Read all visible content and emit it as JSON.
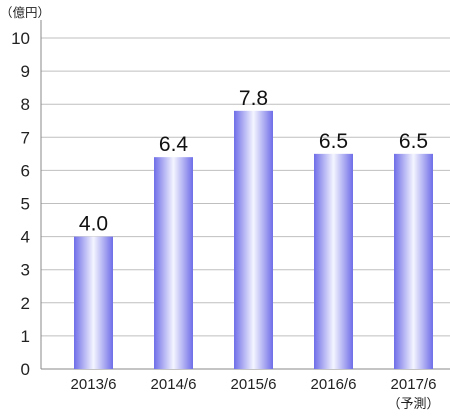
{
  "chart_data": {
    "type": "bar",
    "unit_label": "（億円）",
    "categories": [
      "2013/6",
      "2014/6",
      "2015/6",
      "2016/6",
      "2017/6"
    ],
    "category_notes": [
      "",
      "",
      "",
      "",
      "（予測）"
    ],
    "values": [
      4.0,
      6.4,
      7.8,
      6.5,
      6.5
    ],
    "data_labels": [
      "4.0",
      "6.4",
      "7.8",
      "6.5",
      "6.5"
    ],
    "yticks": [
      "0",
      "1",
      "2",
      "3",
      "4",
      "5",
      "6",
      "7",
      "8",
      "9",
      "10"
    ],
    "ylim": [
      0,
      10
    ],
    "grid": true,
    "colors": {
      "bar_center": "#f4f5ff",
      "bar_edge": "#6f6ee8",
      "grid": "#bfbfbf",
      "axis": "#888888",
      "text": "#222222"
    }
  }
}
